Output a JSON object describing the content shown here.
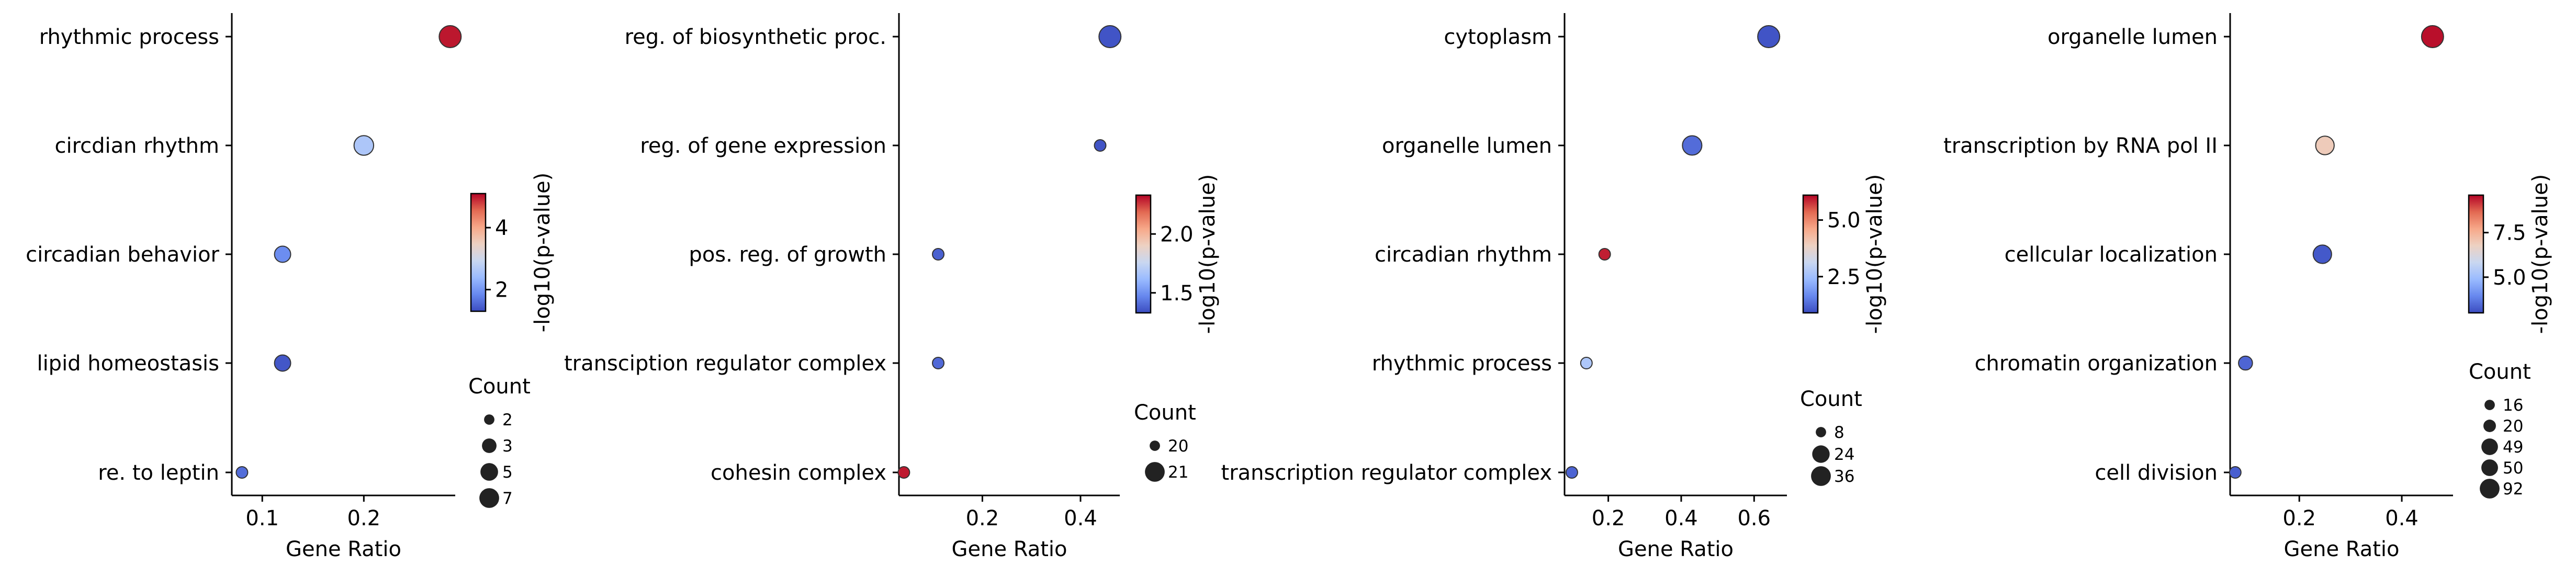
{
  "chart_data": [
    {
      "type": "scatter",
      "categories": [
        "rhythmic process",
        "circdian rhythm",
        "circadian behavior",
        "lipid homeostasis",
        "re. to leptin"
      ],
      "x": [
        0.285,
        0.2,
        0.12,
        0.12,
        0.08
      ],
      "counts": [
        7,
        5,
        3,
        3,
        2
      ],
      "pvalue_log": [
        5.0,
        2.6,
        1.9,
        1.4,
        1.6
      ],
      "xlabel": "Gene Ratio",
      "xlim": [
        0.07,
        0.29
      ],
      "xticks": [
        0.1,
        0.2
      ],
      "xtick_labels": [
        "0.1",
        "0.2"
      ],
      "colorbar": {
        "title": "-log10(p-value)",
        "range": [
          1.3,
          5.1
        ],
        "ticks": [
          2,
          4
        ],
        "tick_labels": [
          "2",
          "4"
        ]
      },
      "size_legend": {
        "title": "Count",
        "values": [
          2,
          3,
          5,
          7
        ],
        "labels": [
          "2",
          "3",
          "5",
          "7"
        ]
      }
    },
    {
      "type": "scatter",
      "categories": [
        "reg. of biosynthetic proc.",
        "reg. of gene expression",
        "pos. reg. of growth",
        "transciption regulator complex",
        "cohesin complex"
      ],
      "x": [
        0.46,
        0.44,
        0.11,
        0.11,
        0.04
      ],
      "counts": [
        21,
        20,
        10,
        10,
        9
      ],
      "pvalue_log": [
        1.35,
        1.35,
        1.38,
        1.4,
        2.3
      ],
      "xlabel": "Gene Ratio",
      "xlim": [
        0.03,
        0.48
      ],
      "xticks": [
        0.2,
        0.4
      ],
      "xtick_labels": [
        "0.2",
        "0.4"
      ],
      "colorbar": {
        "title": "-log10(p-value)",
        "range": [
          1.33,
          2.33
        ],
        "ticks": [
          1.5,
          2.0
        ],
        "tick_labels": [
          "1.5",
          "2.0"
        ]
      },
      "size_legend": {
        "title": "Count",
        "values": [
          20,
          21
        ],
        "labels": [
          "20",
          "21"
        ]
      }
    },
    {
      "type": "scatter",
      "categories": [
        "cytoplasm",
        "organelle lumen",
        "circadian rhythm",
        "rhythmic process",
        "transcription regulator complex"
      ],
      "x": [
        0.64,
        0.43,
        0.19,
        0.14,
        0.1
      ],
      "counts": [
        36,
        24,
        8,
        8,
        8
      ],
      "pvalue_log": [
        1.0,
        1.3,
        5.9,
        2.7,
        1.2
      ],
      "xlabel": "Gene Ratio",
      "xlim": [
        0.08,
        0.69
      ],
      "xticks": [
        0.2,
        0.4,
        0.6
      ],
      "xtick_labels": [
        "0.2",
        "0.4",
        "0.6"
      ],
      "colorbar": {
        "title": "-log10(p-value)",
        "range": [
          0.9,
          6.1
        ],
        "ticks": [
          2.5,
          5.0
        ],
        "tick_labels": [
          "2.5",
          "5.0"
        ]
      },
      "size_legend": {
        "title": "Count",
        "values": [
          8,
          24,
          36
        ],
        "labels": [
          "8",
          "24",
          "36"
        ]
      }
    },
    {
      "type": "scatter",
      "categories": [
        "organelle lumen",
        "transcription by RNA pol II",
        "cellcular localization",
        "chromatin organization",
        "cell division"
      ],
      "x": [
        0.46,
        0.25,
        0.245,
        0.095,
        0.075
      ],
      "counts": [
        92,
        50,
        49,
        20,
        16
      ],
      "pvalue_log": [
        9.5,
        6.9,
        3.2,
        3.4,
        3.3
      ],
      "xlabel": "Gene Ratio",
      "xlim": [
        0.065,
        0.5
      ],
      "xticks": [
        0.2,
        0.4
      ],
      "xtick_labels": [
        "0.2",
        "0.4"
      ],
      "colorbar": {
        "title": "-log10(p-value)",
        "range": [
          3.0,
          9.6
        ],
        "ticks": [
          5.0,
          7.5
        ],
        "tick_labels": [
          "5.0",
          "7.5"
        ]
      },
      "size_legend": {
        "title": "Count",
        "values": [
          16,
          20,
          49,
          50,
          92
        ],
        "labels": [
          "16",
          "20",
          "49",
          "50",
          "92"
        ]
      }
    }
  ],
  "colors": {
    "cmap": [
      "#3b4cc0",
      "#6788ee",
      "#9abbff",
      "#c9d7f0",
      "#edd1c2",
      "#f7a889",
      "#e26952",
      "#b40426"
    ],
    "marker_edge": "#333333",
    "legend_marker": "#222222"
  }
}
